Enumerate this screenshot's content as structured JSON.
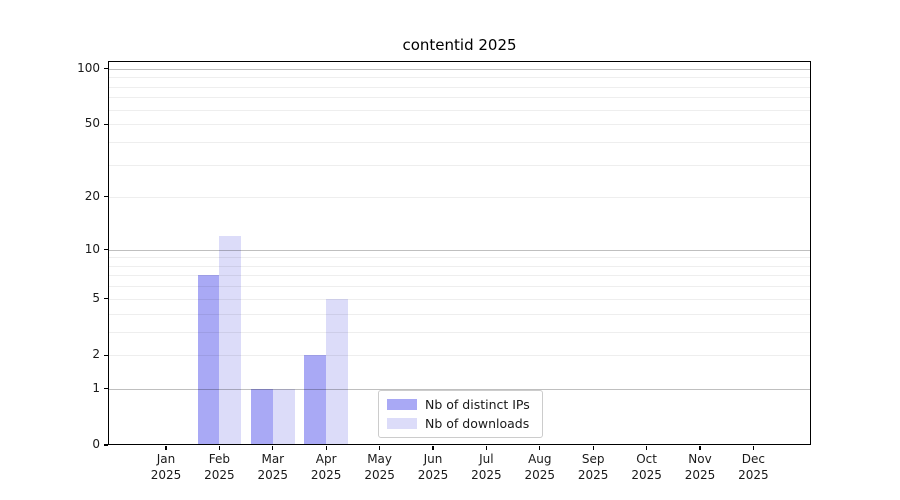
{
  "title": "contentid 2025",
  "chart_data": {
    "type": "bar",
    "title": "contentid 2025",
    "categories": [
      "Jan",
      "Feb",
      "Mar",
      "Apr",
      "May",
      "Jun",
      "Jul",
      "Aug",
      "Sep",
      "Oct",
      "Nov",
      "Dec"
    ],
    "x_year": "2025",
    "series": [
      {
        "name": "Nb of distinct IPs",
        "color": "#a9a9f5",
        "values": [
          0,
          7,
          1,
          2,
          0,
          0,
          0,
          0,
          0,
          0,
          0,
          0
        ]
      },
      {
        "name": "Nb of downloads",
        "color": "#dcdcf9",
        "values": [
          0,
          12,
          1,
          5,
          0,
          0,
          0,
          0,
          0,
          0,
          0,
          0
        ]
      }
    ],
    "xlabel": "",
    "ylabel": "",
    "yscale": "symlog-log1p",
    "ylim": [
      0,
      110
    ],
    "yticks": [
      0,
      1,
      2,
      5,
      10,
      20,
      50,
      100
    ],
    "grid": {
      "major": [
        1,
        10,
        100
      ],
      "minor": [
        2,
        3,
        4,
        5,
        6,
        7,
        8,
        9,
        20,
        30,
        40,
        50,
        60,
        70,
        80,
        90
      ]
    },
    "legend": {
      "position": "lower center inside"
    }
  }
}
